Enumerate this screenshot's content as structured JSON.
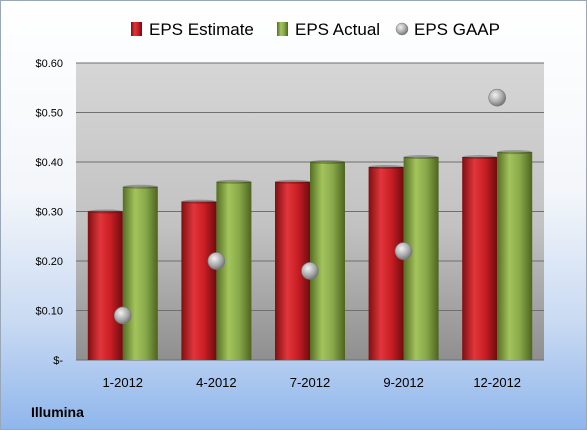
{
  "footer_label": "Illumina",
  "chart_data": {
    "type": "bar",
    "title": "",
    "xlabel": "",
    "ylabel": "",
    "categories": [
      "1-2012",
      "4-2012",
      "7-2012",
      "9-2012",
      "12-2012"
    ],
    "series": [
      {
        "name": "EPS Estimate",
        "kind": "bar",
        "color": "#cc1f26",
        "values": [
          0.3,
          0.32,
          0.36,
          0.39,
          0.41
        ]
      },
      {
        "name": "EPS Actual",
        "kind": "bar",
        "color": "#8db04a",
        "values": [
          0.35,
          0.36,
          0.4,
          0.41,
          0.42
        ]
      },
      {
        "name": "EPS GAAP",
        "kind": "scatter",
        "color": "#a8a8a8",
        "values": [
          0.09,
          0.2,
          0.18,
          0.22,
          0.53
        ]
      }
    ],
    "ylim": [
      0,
      0.6
    ],
    "yticks": [
      0,
      0.1,
      0.2,
      0.3,
      0.4,
      0.5,
      0.6
    ],
    "ytick_labels": [
      "$-",
      "$0.10",
      "$0.20",
      "$0.30",
      "$0.40",
      "$0.50",
      "$0.60"
    ],
    "grid": true,
    "legend_position": "top"
  }
}
